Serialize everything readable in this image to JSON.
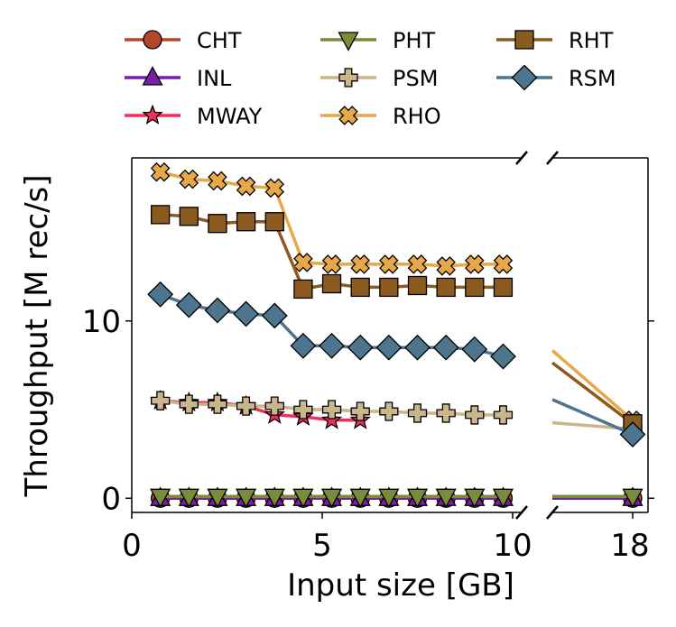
{
  "chart_data": {
    "type": "line",
    "xlabel": "Input size [GB]",
    "ylabel": "Throughput [M rec/s]",
    "xlim_left": [
      0,
      10
    ],
    "xlim_right": [
      18
    ],
    "ylim": [
      -0.8,
      19.2
    ],
    "broken_x_axis": true,
    "xticks_left": [
      "0",
      "5",
      "10"
    ],
    "xticks_right": [
      "18"
    ],
    "yticks": [
      "0",
      "10"
    ],
    "legend_placement": "top",
    "series": [
      {
        "name": "CHT",
        "color": "#b5462a",
        "marker": "circle",
        "points": [
          [
            0.75,
            0
          ],
          [
            1.5,
            0
          ],
          [
            2.25,
            0
          ],
          [
            3.0,
            0
          ],
          [
            3.75,
            0
          ],
          [
            4.5,
            0
          ],
          [
            5.25,
            0
          ],
          [
            6.0,
            0
          ],
          [
            6.75,
            0
          ],
          [
            7.5,
            0
          ],
          [
            8.25,
            0
          ],
          [
            9.0,
            0
          ],
          [
            9.75,
            0
          ],
          [
            18,
            0
          ]
        ]
      },
      {
        "name": "INL",
        "color": "#7a1fa2",
        "marker": "triangle-up",
        "points": [
          [
            0.75,
            0
          ],
          [
            1.5,
            0
          ],
          [
            2.25,
            0
          ],
          [
            3.0,
            0
          ],
          [
            3.75,
            0
          ],
          [
            4.5,
            0
          ],
          [
            5.25,
            0
          ],
          [
            6.0,
            0
          ],
          [
            6.75,
            0
          ],
          [
            7.5,
            0
          ],
          [
            8.25,
            0
          ],
          [
            9.0,
            0
          ],
          [
            9.75,
            0
          ],
          [
            18,
            0
          ]
        ]
      },
      {
        "name": "MWAY",
        "color": "#f0305a",
        "marker": "star",
        "points": [
          [
            0.75,
            5.5
          ],
          [
            1.5,
            5.4
          ],
          [
            2.25,
            5.4
          ],
          [
            3.0,
            5.2
          ],
          [
            3.75,
            4.7
          ],
          [
            4.5,
            4.6
          ],
          [
            5.25,
            4.4
          ],
          [
            6.0,
            4.4
          ]
        ]
      },
      {
        "name": "PHT",
        "color": "#7a8c3c",
        "marker": "triangle-down",
        "points": [
          [
            0.75,
            0.1
          ],
          [
            1.5,
            0.1
          ],
          [
            2.25,
            0.1
          ],
          [
            3.0,
            0.1
          ],
          [
            3.75,
            0.1
          ],
          [
            4.5,
            0.1
          ],
          [
            5.25,
            0.1
          ],
          [
            6.0,
            0.1
          ],
          [
            6.75,
            0.1
          ],
          [
            7.5,
            0.1
          ],
          [
            8.25,
            0.1
          ],
          [
            9.0,
            0.1
          ],
          [
            9.75,
            0.1
          ],
          [
            18,
            0.1
          ]
        ]
      },
      {
        "name": "PSM",
        "color": "#c9b68a",
        "marker": "plus",
        "points": [
          [
            0.75,
            5.5
          ],
          [
            1.5,
            5.3
          ],
          [
            2.25,
            5.3
          ],
          [
            3.0,
            5.2
          ],
          [
            3.75,
            5.2
          ],
          [
            4.5,
            5.0
          ],
          [
            5.25,
            5.0
          ],
          [
            6.0,
            4.9
          ],
          [
            6.75,
            4.9
          ],
          [
            7.5,
            4.8
          ],
          [
            8.25,
            4.8
          ],
          [
            9.0,
            4.7
          ],
          [
            9.75,
            4.7
          ],
          [
            18,
            3.9
          ]
        ]
      },
      {
        "name": "RHO",
        "color": "#e8a84a",
        "marker": "x",
        "points": [
          [
            0.75,
            18.4
          ],
          [
            1.5,
            18.0
          ],
          [
            2.25,
            17.9
          ],
          [
            3.0,
            17.6
          ],
          [
            3.75,
            17.5
          ],
          [
            4.5,
            13.3
          ],
          [
            5.25,
            13.2
          ],
          [
            6.0,
            13.2
          ],
          [
            6.75,
            13.2
          ],
          [
            7.5,
            13.2
          ],
          [
            8.25,
            13.1
          ],
          [
            9.0,
            13.2
          ],
          [
            9.75,
            13.2
          ],
          [
            18,
            4.4
          ]
        ]
      },
      {
        "name": "RHT",
        "color": "#8a5a1e",
        "marker": "square",
        "points": [
          [
            0.75,
            16.0
          ],
          [
            1.5,
            15.9
          ],
          [
            2.25,
            15.5
          ],
          [
            3.0,
            15.6
          ],
          [
            3.75,
            15.6
          ],
          [
            4.5,
            11.8
          ],
          [
            5.25,
            12.1
          ],
          [
            6.0,
            11.9
          ],
          [
            6.75,
            11.9
          ],
          [
            7.5,
            12.0
          ],
          [
            8.25,
            11.9
          ],
          [
            9.0,
            11.9
          ],
          [
            9.75,
            11.9
          ],
          [
            18,
            4.2
          ]
        ]
      },
      {
        "name": "RSM",
        "color": "#4e758e",
        "marker": "diamond",
        "points": [
          [
            0.75,
            11.5
          ],
          [
            1.5,
            10.9
          ],
          [
            2.25,
            10.6
          ],
          [
            3.0,
            10.4
          ],
          [
            3.75,
            10.3
          ],
          [
            4.5,
            8.6
          ],
          [
            5.25,
            8.6
          ],
          [
            6.0,
            8.5
          ],
          [
            6.75,
            8.5
          ],
          [
            7.5,
            8.5
          ],
          [
            8.25,
            8.5
          ],
          [
            9.0,
            8.4
          ],
          [
            9.75,
            8.0
          ],
          [
            18,
            3.6
          ]
        ]
      }
    ]
  }
}
